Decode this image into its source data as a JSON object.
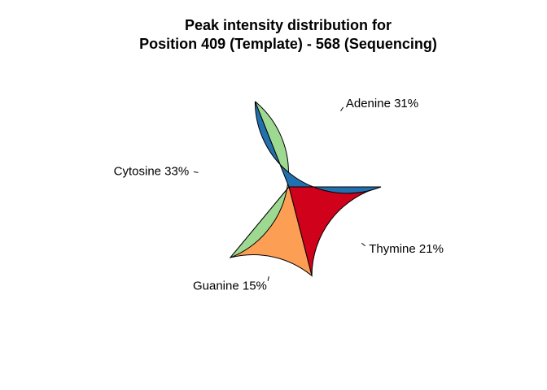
{
  "chart_data": {
    "type": "pie",
    "title_lines": [
      "Peak intensity distribution for",
      "Position 409 (Template) - 568 (Sequencing)"
    ],
    "start_angle_deg": 0,
    "direction": "counterclockwise",
    "slices": [
      {
        "name": "Thymine",
        "value": 21,
        "label": "Thymine 21%",
        "color": "#D0021B"
      },
      {
        "name": "Guanine",
        "value": 15,
        "label": "Guanine 15%",
        "color": "#FC9F55"
      },
      {
        "name": "Cytosine",
        "value": 33,
        "label": "Cytosine 33%",
        "color": "#9ED991"
      },
      {
        "name": "Adenine",
        "value": 31,
        "label": "Adenine 31%",
        "color": "#2370AE"
      }
    ]
  }
}
